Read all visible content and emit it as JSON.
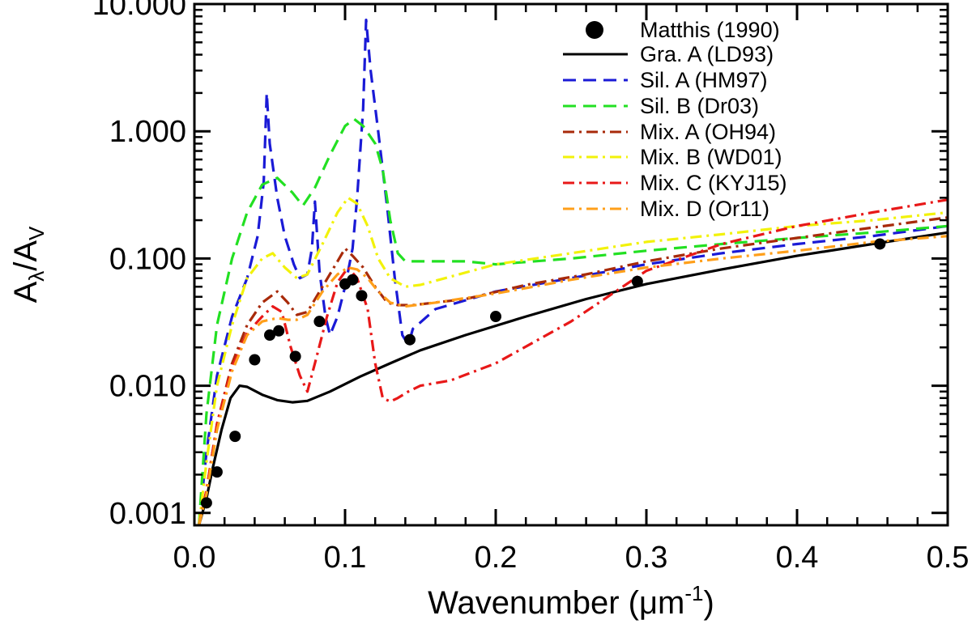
{
  "chart_data": {
    "type": "line",
    "xlabel": "Wavenumber (μm⁻¹)",
    "ylabel": "Aλ/AV",
    "xlim": [
      0.0,
      0.5
    ],
    "ylim": [
      0.0008,
      10
    ],
    "yscale": "log",
    "grid": false,
    "legend_position": "top-right",
    "x_ticks": [
      0.0,
      0.1,
      0.2,
      0.3,
      0.4,
      0.5
    ],
    "x_tick_labels": [
      "0.0",
      "0.1",
      "0.2",
      "0.3",
      "0.4",
      "0.5"
    ],
    "y_ticks": [
      0.001,
      0.01,
      0.1,
      1,
      10
    ],
    "y_tick_labels": [
      "0.001",
      "0.010",
      "0.100",
      "1.000",
      "10.000"
    ],
    "ylabel_parts": {
      "main": "A",
      "sub1": "λ",
      "sep": "/A",
      "sub2": "V"
    },
    "xlabel_parts": {
      "main": "Wavenumber (μm",
      "sup": "-1",
      "end": ")"
    },
    "scatter": {
      "name": "Matthis (1990)",
      "color": "#000000",
      "points": [
        [
          0.008,
          0.0012
        ],
        [
          0.015,
          0.0021
        ],
        [
          0.027,
          0.004
        ],
        [
          0.04,
          0.016
        ],
        [
          0.05,
          0.025
        ],
        [
          0.056,
          0.027
        ],
        [
          0.067,
          0.017
        ],
        [
          0.083,
          0.032
        ],
        [
          0.1,
          0.063
        ],
        [
          0.105,
          0.068
        ],
        [
          0.111,
          0.051
        ],
        [
          0.143,
          0.023
        ],
        [
          0.2,
          0.035
        ],
        [
          0.294,
          0.066
        ],
        [
          0.455,
          0.13
        ]
      ]
    },
    "series": [
      {
        "name": "Gra. A (LD93)",
        "color": "#000000",
        "dash": "solid",
        "points": [
          [
            0.003,
            0.0008
          ],
          [
            0.008,
            0.0013
          ],
          [
            0.012,
            0.0022
          ],
          [
            0.018,
            0.0045
          ],
          [
            0.024,
            0.008
          ],
          [
            0.03,
            0.01
          ],
          [
            0.035,
            0.0098
          ],
          [
            0.045,
            0.0085
          ],
          [
            0.055,
            0.0077
          ],
          [
            0.065,
            0.0074
          ],
          [
            0.075,
            0.0076
          ],
          [
            0.09,
            0.009
          ],
          [
            0.11,
            0.0118
          ],
          [
            0.13,
            0.015
          ],
          [
            0.15,
            0.019
          ],
          [
            0.18,
            0.025
          ],
          [
            0.22,
            0.035
          ],
          [
            0.26,
            0.048
          ],
          [
            0.3,
            0.063
          ],
          [
            0.35,
            0.082
          ],
          [
            0.4,
            0.105
          ],
          [
            0.45,
            0.13
          ],
          [
            0.5,
            0.16
          ]
        ]
      },
      {
        "name": "Sil. A (HM97)",
        "color": "#1a1ad6",
        "dash": "dashed",
        "points": [
          [
            0.003,
            0.0008
          ],
          [
            0.008,
            0.003
          ],
          [
            0.015,
            0.012
          ],
          [
            0.025,
            0.035
          ],
          [
            0.035,
            0.07
          ],
          [
            0.042,
            0.15
          ],
          [
            0.046,
            0.4
          ],
          [
            0.048,
            2.0
          ],
          [
            0.05,
            0.8
          ],
          [
            0.055,
            0.3
          ],
          [
            0.06,
            0.15
          ],
          [
            0.066,
            0.09
          ],
          [
            0.07,
            0.07
          ],
          [
            0.075,
            0.075
          ],
          [
            0.078,
            0.12
          ],
          [
            0.08,
            0.28
          ],
          [
            0.083,
            0.08
          ],
          [
            0.087,
            0.035
          ],
          [
            0.09,
            0.025
          ],
          [
            0.095,
            0.035
          ],
          [
            0.1,
            0.06
          ],
          [
            0.105,
            0.12
          ],
          [
            0.108,
            0.3
          ],
          [
            0.112,
            1.5
          ],
          [
            0.114,
            7.5
          ],
          [
            0.117,
            3.0
          ],
          [
            0.122,
            1.0
          ],
          [
            0.128,
            0.25
          ],
          [
            0.133,
            0.07
          ],
          [
            0.138,
            0.025
          ],
          [
            0.142,
            0.021
          ],
          [
            0.145,
            0.028
          ],
          [
            0.148,
            0.03
          ],
          [
            0.16,
            0.04
          ],
          [
            0.2,
            0.055
          ],
          [
            0.25,
            0.07
          ],
          [
            0.3,
            0.09
          ],
          [
            0.35,
            0.11
          ],
          [
            0.4,
            0.13
          ],
          [
            0.45,
            0.15
          ],
          [
            0.5,
            0.18
          ]
        ]
      },
      {
        "name": "Sil. B (Dr03)",
        "color": "#22e022",
        "dash": "dashed",
        "points": [
          [
            0.003,
            0.0008
          ],
          [
            0.008,
            0.006
          ],
          [
            0.015,
            0.03
          ],
          [
            0.025,
            0.1
          ],
          [
            0.035,
            0.23
          ],
          [
            0.045,
            0.38
          ],
          [
            0.055,
            0.43
          ],
          [
            0.065,
            0.33
          ],
          [
            0.072,
            0.26
          ],
          [
            0.08,
            0.36
          ],
          [
            0.09,
            0.65
          ],
          [
            0.1,
            1.1
          ],
          [
            0.106,
            1.25
          ],
          [
            0.112,
            1.1
          ],
          [
            0.12,
            0.8
          ],
          [
            0.125,
            0.5
          ],
          [
            0.13,
            0.2
          ],
          [
            0.135,
            0.11
          ],
          [
            0.14,
            0.095
          ],
          [
            0.18,
            0.095
          ],
          [
            0.2,
            0.09
          ],
          [
            0.25,
            0.1
          ],
          [
            0.3,
            0.115
          ],
          [
            0.35,
            0.13
          ],
          [
            0.4,
            0.145
          ],
          [
            0.45,
            0.16
          ],
          [
            0.5,
            0.18
          ]
        ]
      },
      {
        "name": "Mix. A (OH94)",
        "color": "#a82a0a",
        "dash": "dashdot",
        "points": [
          [
            0.003,
            0.0008
          ],
          [
            0.008,
            0.0015
          ],
          [
            0.015,
            0.005
          ],
          [
            0.025,
            0.015
          ],
          [
            0.035,
            0.03
          ],
          [
            0.045,
            0.045
          ],
          [
            0.055,
            0.055
          ],
          [
            0.062,
            0.045
          ],
          [
            0.068,
            0.036
          ],
          [
            0.075,
            0.038
          ],
          [
            0.085,
            0.06
          ],
          [
            0.095,
            0.095
          ],
          [
            0.1,
            0.12
          ],
          [
            0.105,
            0.105
          ],
          [
            0.112,
            0.085
          ],
          [
            0.12,
            0.06
          ],
          [
            0.128,
            0.045
          ],
          [
            0.135,
            0.043
          ],
          [
            0.145,
            0.043
          ],
          [
            0.18,
            0.048
          ],
          [
            0.22,
            0.062
          ],
          [
            0.26,
            0.075
          ],
          [
            0.3,
            0.095
          ],
          [
            0.35,
            0.12
          ],
          [
            0.4,
            0.145
          ],
          [
            0.45,
            0.175
          ],
          [
            0.5,
            0.21
          ]
        ]
      },
      {
        "name": "Mix. B (WD01)",
        "color": "#f2f20a",
        "dash": "dashdot",
        "points": [
          [
            0.003,
            0.0008
          ],
          [
            0.008,
            0.0025
          ],
          [
            0.015,
            0.01
          ],
          [
            0.025,
            0.03
          ],
          [
            0.035,
            0.07
          ],
          [
            0.045,
            0.1
          ],
          [
            0.052,
            0.11
          ],
          [
            0.06,
            0.085
          ],
          [
            0.068,
            0.07
          ],
          [
            0.075,
            0.075
          ],
          [
            0.085,
            0.13
          ],
          [
            0.095,
            0.23
          ],
          [
            0.102,
            0.3
          ],
          [
            0.108,
            0.27
          ],
          [
            0.115,
            0.18
          ],
          [
            0.122,
            0.1
          ],
          [
            0.13,
            0.07
          ],
          [
            0.14,
            0.06
          ],
          [
            0.15,
            0.062
          ],
          [
            0.2,
            0.09
          ],
          [
            0.25,
            0.11
          ],
          [
            0.3,
            0.135
          ],
          [
            0.35,
            0.155
          ],
          [
            0.4,
            0.18
          ],
          [
            0.45,
            0.2
          ],
          [
            0.5,
            0.23
          ]
        ]
      },
      {
        "name": "Mix. C (KYJ15)",
        "color": "#e81818",
        "dash": "dashdot",
        "points": [
          [
            0.003,
            0.0008
          ],
          [
            0.008,
            0.0015
          ],
          [
            0.015,
            0.005
          ],
          [
            0.025,
            0.014
          ],
          [
            0.035,
            0.026
          ],
          [
            0.045,
            0.035
          ],
          [
            0.052,
            0.042
          ],
          [
            0.058,
            0.038
          ],
          [
            0.064,
            0.02
          ],
          [
            0.07,
            0.012
          ],
          [
            0.075,
            0.009
          ],
          [
            0.08,
            0.015
          ],
          [
            0.088,
            0.035
          ],
          [
            0.095,
            0.065
          ],
          [
            0.102,
            0.085
          ],
          [
            0.108,
            0.07
          ],
          [
            0.115,
            0.04
          ],
          [
            0.12,
            0.015
          ],
          [
            0.125,
            0.008
          ],
          [
            0.13,
            0.0075
          ],
          [
            0.135,
            0.008
          ],
          [
            0.142,
            0.009
          ],
          [
            0.15,
            0.01
          ],
          [
            0.17,
            0.011
          ],
          [
            0.2,
            0.015
          ],
          [
            0.25,
            0.032
          ],
          [
            0.3,
            0.08
          ],
          [
            0.35,
            0.13
          ],
          [
            0.4,
            0.18
          ],
          [
            0.45,
            0.23
          ],
          [
            0.5,
            0.29
          ]
        ]
      },
      {
        "name": "Mix. D (Or11)",
        "color": "#ff9f1a",
        "dash": "dashdot",
        "points": [
          [
            0.003,
            0.0008
          ],
          [
            0.008,
            0.0014
          ],
          [
            0.015,
            0.0045
          ],
          [
            0.025,
            0.013
          ],
          [
            0.035,
            0.025
          ],
          [
            0.045,
            0.032
          ],
          [
            0.055,
            0.034
          ],
          [
            0.062,
            0.033
          ],
          [
            0.068,
            0.033
          ],
          [
            0.075,
            0.036
          ],
          [
            0.085,
            0.055
          ],
          [
            0.095,
            0.075
          ],
          [
            0.102,
            0.085
          ],
          [
            0.108,
            0.082
          ],
          [
            0.115,
            0.07
          ],
          [
            0.122,
            0.055
          ],
          [
            0.13,
            0.045
          ],
          [
            0.14,
            0.042
          ],
          [
            0.16,
            0.045
          ],
          [
            0.2,
            0.053
          ],
          [
            0.25,
            0.068
          ],
          [
            0.3,
            0.085
          ],
          [
            0.35,
            0.1
          ],
          [
            0.4,
            0.115
          ],
          [
            0.45,
            0.135
          ],
          [
            0.5,
            0.15
          ]
        ]
      }
    ]
  }
}
